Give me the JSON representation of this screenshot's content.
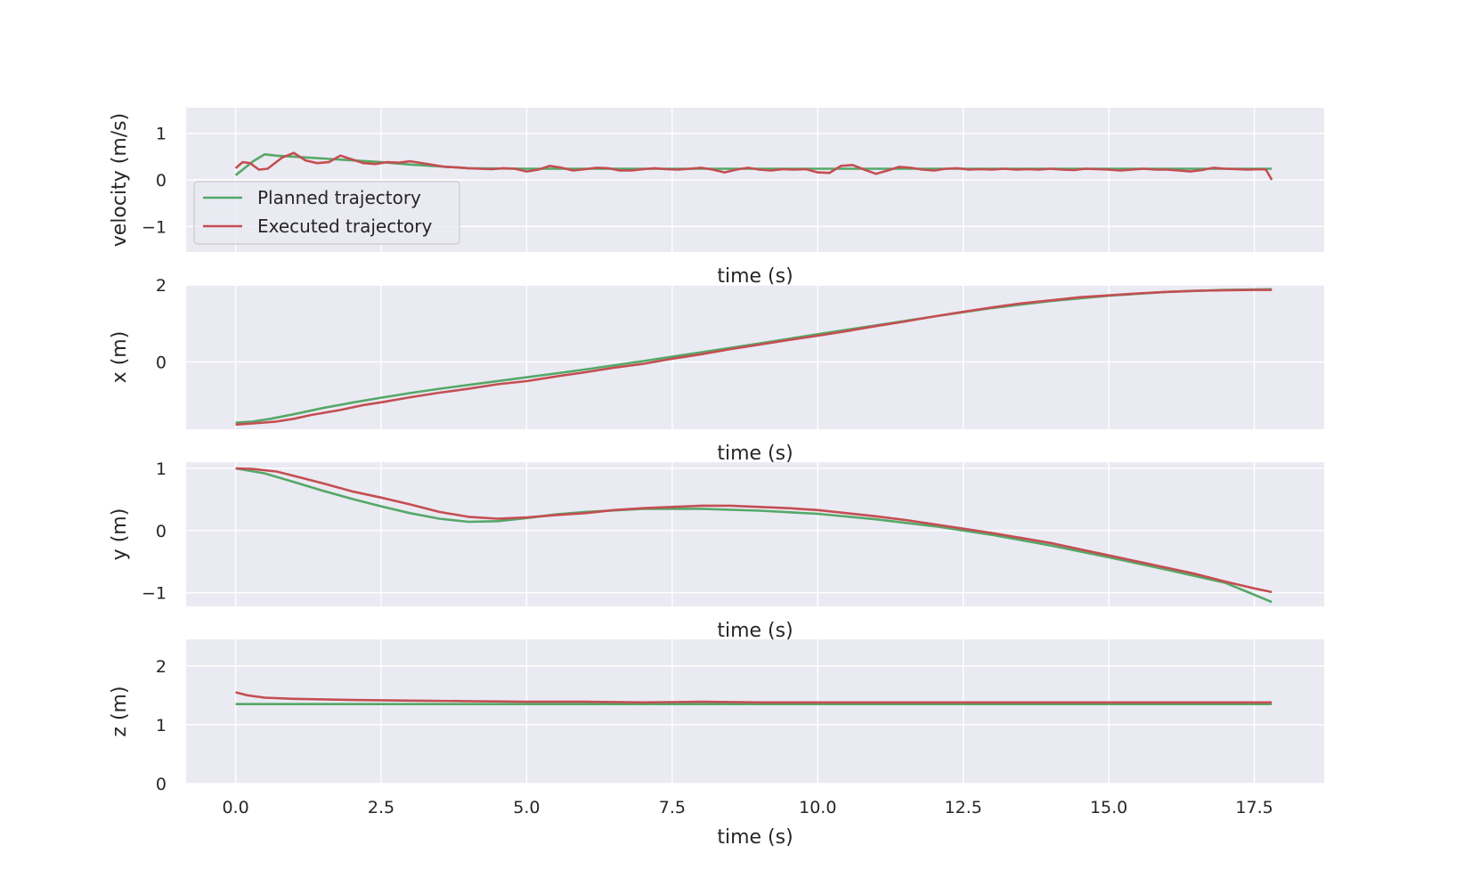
{
  "colors": {
    "planned": "#55a868",
    "executed": "#c44e52",
    "axes_bg": "#eaeaf2",
    "grid": "#ffffff"
  },
  "legend": {
    "placement": "lower-left",
    "entries": [
      "Planned trajectory",
      "Executed trajectory"
    ]
  },
  "chart_data": [
    {
      "type": "line",
      "xlabel": "time (s)",
      "ylabel": "velocity (m/s)",
      "xlim": [
        -0.85,
        18.7
      ],
      "ylim": [
        -1.55,
        1.55
      ],
      "xticks": [
        0.0,
        2.5,
        5.0,
        7.5,
        10.0,
        12.5,
        15.0,
        17.5
      ],
      "xticklabels": [],
      "yticks": [
        -1,
        0,
        1
      ],
      "yticklabels": [
        "−1",
        "0",
        "1"
      ],
      "grid": true,
      "legend": true,
      "series": [
        {
          "name": "Planned trajectory",
          "color": "#55a868",
          "x": [
            0,
            0.3,
            0.5,
            0.7,
            1.0,
            1.5,
            2.0,
            2.5,
            3.0,
            3.5,
            4.0,
            5.0,
            7.5,
            10.0,
            12.5,
            15.0,
            17.5,
            17.8
          ],
          "y": [
            0.1,
            0.4,
            0.55,
            0.52,
            0.5,
            0.46,
            0.42,
            0.38,
            0.33,
            0.29,
            0.25,
            0.24,
            0.24,
            0.24,
            0.24,
            0.24,
            0.24,
            0.24
          ]
        },
        {
          "name": "Executed trajectory",
          "color": "#c44e52",
          "x": [
            0,
            0.12,
            0.25,
            0.4,
            0.55,
            0.8,
            1.0,
            1.2,
            1.4,
            1.6,
            1.8,
            2.0,
            2.2,
            2.4,
            2.6,
            2.8,
            3.0,
            3.2,
            3.4,
            3.6,
            3.8,
            4.0,
            4.2,
            4.4,
            4.6,
            4.8,
            5.0,
            5.2,
            5.4,
            5.6,
            5.8,
            6.0,
            6.2,
            6.4,
            6.6,
            6.8,
            7.0,
            7.2,
            7.4,
            7.6,
            7.8,
            8.0,
            8.2,
            8.4,
            8.6,
            8.8,
            9.0,
            9.2,
            9.4,
            9.6,
            9.8,
            10.0,
            10.2,
            10.4,
            10.6,
            10.8,
            11.0,
            11.2,
            11.4,
            11.6,
            11.8,
            12.0,
            12.2,
            12.4,
            12.6,
            12.8,
            13.0,
            13.2,
            13.4,
            13.6,
            13.8,
            14.0,
            14.2,
            14.4,
            14.6,
            14.8,
            15.0,
            15.2,
            15.4,
            15.6,
            15.8,
            16.0,
            16.2,
            16.4,
            16.6,
            16.8,
            17.0,
            17.2,
            17.4,
            17.6,
            17.7,
            17.8
          ],
          "y": [
            0.25,
            0.38,
            0.36,
            0.22,
            0.24,
            0.48,
            0.58,
            0.42,
            0.36,
            0.38,
            0.52,
            0.44,
            0.36,
            0.34,
            0.38,
            0.37,
            0.4,
            0.36,
            0.32,
            0.28,
            0.27,
            0.25,
            0.24,
            0.23,
            0.25,
            0.24,
            0.18,
            0.22,
            0.3,
            0.26,
            0.2,
            0.23,
            0.26,
            0.25,
            0.2,
            0.2,
            0.23,
            0.25,
            0.23,
            0.22,
            0.24,
            0.26,
            0.22,
            0.16,
            0.22,
            0.26,
            0.22,
            0.2,
            0.23,
            0.22,
            0.23,
            0.16,
            0.15,
            0.3,
            0.32,
            0.22,
            0.13,
            0.2,
            0.28,
            0.26,
            0.22,
            0.2,
            0.24,
            0.25,
            0.22,
            0.23,
            0.22,
            0.24,
            0.22,
            0.23,
            0.22,
            0.24,
            0.22,
            0.21,
            0.24,
            0.23,
            0.22,
            0.2,
            0.22,
            0.24,
            0.22,
            0.22,
            0.2,
            0.18,
            0.21,
            0.26,
            0.24,
            0.23,
            0.22,
            0.23,
            0.22,
            0.0
          ]
        }
      ]
    },
    {
      "type": "line",
      "xlabel": "time (s)",
      "ylabel": "x (m)",
      "xlim": [
        -0.85,
        18.7
      ],
      "ylim": [
        -1.75,
        2.0
      ],
      "xticks": [
        0.0,
        2.5,
        5.0,
        7.5,
        10.0,
        12.5,
        15.0,
        17.5
      ],
      "xticklabels": [],
      "yticks": [
        0,
        2
      ],
      "yticklabels": [
        "0",
        "2"
      ],
      "grid": true,
      "legend": false,
      "series": [
        {
          "name": "Planned trajectory",
          "color": "#55a868",
          "x": [
            0,
            0.3,
            0.6,
            1.0,
            1.5,
            2.0,
            2.5,
            3.0,
            3.5,
            4.0,
            5.0,
            6.0,
            7.0,
            8.0,
            9.0,
            10.0,
            11.0,
            12.0,
            13.0,
            14.0,
            15.0,
            16.0,
            17.0,
            17.8
          ],
          "y": [
            -1.58,
            -1.55,
            -1.48,
            -1.36,
            -1.2,
            -1.06,
            -0.93,
            -0.81,
            -0.7,
            -0.6,
            -0.4,
            -0.2,
            0.02,
            0.25,
            0.48,
            0.72,
            0.95,
            1.18,
            1.4,
            1.58,
            1.72,
            1.82,
            1.87,
            1.89
          ]
        },
        {
          "name": "Executed trajectory",
          "color": "#c44e52",
          "x": [
            0,
            0.3,
            0.7,
            1.0,
            1.3,
            1.8,
            2.2,
            2.5,
            3.0,
            3.5,
            4.0,
            4.5,
            5.0,
            5.5,
            6.0,
            6.5,
            7.0,
            7.5,
            8.0,
            8.5,
            9.0,
            9.5,
            10.0,
            10.5,
            11.0,
            11.5,
            12.0,
            12.5,
            13.0,
            13.5,
            14.0,
            14.5,
            15.0,
            15.5,
            16.0,
            16.5,
            17.0,
            17.5,
            17.8
          ],
          "y": [
            -1.63,
            -1.6,
            -1.55,
            -1.48,
            -1.38,
            -1.25,
            -1.12,
            -1.05,
            -0.92,
            -0.8,
            -0.7,
            -0.58,
            -0.5,
            -0.38,
            -0.27,
            -0.15,
            -0.05,
            0.08,
            0.2,
            0.33,
            0.45,
            0.57,
            0.68,
            0.8,
            0.93,
            1.05,
            1.18,
            1.3,
            1.42,
            1.52,
            1.6,
            1.68,
            1.73,
            1.78,
            1.82,
            1.85,
            1.86,
            1.87,
            1.87
          ]
        }
      ]
    },
    {
      "type": "line",
      "xlabel": "time (s)",
      "ylabel": "y (m)",
      "xlim": [
        -0.85,
        18.7
      ],
      "ylim": [
        -1.22,
        1.1
      ],
      "xticks": [
        0.0,
        2.5,
        5.0,
        7.5,
        10.0,
        12.5,
        15.0,
        17.5
      ],
      "xticklabels": [],
      "yticks": [
        -1,
        0,
        1
      ],
      "yticklabels": [
        "−1",
        "0",
        "1"
      ],
      "grid": true,
      "legend": false,
      "series": [
        {
          "name": "Planned trajectory",
          "color": "#55a868",
          "x": [
            0,
            0.5,
            1.0,
            1.5,
            2.0,
            2.5,
            3.0,
            3.5,
            4.0,
            4.5,
            5.0,
            5.5,
            6.0,
            7.0,
            8.0,
            9.0,
            10.0,
            11.0,
            12.0,
            13.0,
            14.0,
            15.0,
            16.0,
            17.0,
            17.8
          ],
          "y": [
            1.0,
            0.92,
            0.78,
            0.64,
            0.51,
            0.39,
            0.28,
            0.19,
            0.14,
            0.15,
            0.2,
            0.26,
            0.3,
            0.35,
            0.35,
            0.32,
            0.27,
            0.18,
            0.07,
            -0.07,
            -0.24,
            -0.43,
            -0.63,
            -0.84,
            -1.15
          ]
        },
        {
          "name": "Executed trajectory",
          "color": "#c44e52",
          "x": [
            0,
            0.3,
            0.7,
            1.0,
            1.5,
            2.0,
            2.5,
            3.0,
            3.5,
            4.0,
            4.5,
            5.0,
            5.5,
            6.0,
            6.5,
            7.0,
            7.5,
            8.0,
            8.5,
            9.0,
            9.5,
            10.0,
            10.5,
            11.0,
            11.5,
            12.0,
            12.5,
            13.0,
            13.5,
            14.0,
            14.5,
            15.0,
            15.5,
            16.0,
            16.5,
            17.0,
            17.5,
            17.8
          ],
          "y": [
            1.0,
            0.99,
            0.95,
            0.88,
            0.76,
            0.63,
            0.53,
            0.42,
            0.3,
            0.22,
            0.19,
            0.21,
            0.25,
            0.28,
            0.33,
            0.36,
            0.38,
            0.4,
            0.4,
            0.38,
            0.36,
            0.33,
            0.28,
            0.23,
            0.17,
            0.1,
            0.03,
            -0.04,
            -0.12,
            -0.2,
            -0.3,
            -0.4,
            -0.5,
            -0.6,
            -0.7,
            -0.82,
            -0.93,
            -0.99
          ]
        }
      ]
    },
    {
      "type": "line",
      "xlabel": "time (s)",
      "ylabel": "z (m)",
      "xlim": [
        -0.85,
        18.7
      ],
      "ylim": [
        0.0,
        2.45
      ],
      "xticks": [
        0.0,
        2.5,
        5.0,
        7.5,
        10.0,
        12.5,
        15.0,
        17.5
      ],
      "xticklabels": [
        "0.0",
        "2.5",
        "5.0",
        "7.5",
        "10.0",
        "12.5",
        "15.0",
        "17.5"
      ],
      "yticks": [
        0,
        1,
        2
      ],
      "yticklabels": [
        "0",
        "1",
        "2"
      ],
      "grid": true,
      "legend": false,
      "series": [
        {
          "name": "Planned trajectory",
          "color": "#55a868",
          "x": [
            0,
            17.8
          ],
          "y": [
            1.35,
            1.35
          ]
        },
        {
          "name": "Executed trajectory",
          "color": "#c44e52",
          "x": [
            0,
            0.2,
            0.5,
            1.0,
            1.5,
            2.0,
            3.0,
            4.0,
            5.0,
            6.0,
            7.0,
            8.0,
            9.0,
            10.0,
            11.0,
            12.0,
            13.0,
            14.0,
            15.0,
            16.0,
            17.0,
            17.8
          ],
          "y": [
            1.55,
            1.5,
            1.46,
            1.44,
            1.43,
            1.42,
            1.41,
            1.4,
            1.39,
            1.39,
            1.38,
            1.39,
            1.38,
            1.38,
            1.38,
            1.38,
            1.38,
            1.38,
            1.38,
            1.38,
            1.38,
            1.38
          ]
        }
      ]
    }
  ]
}
